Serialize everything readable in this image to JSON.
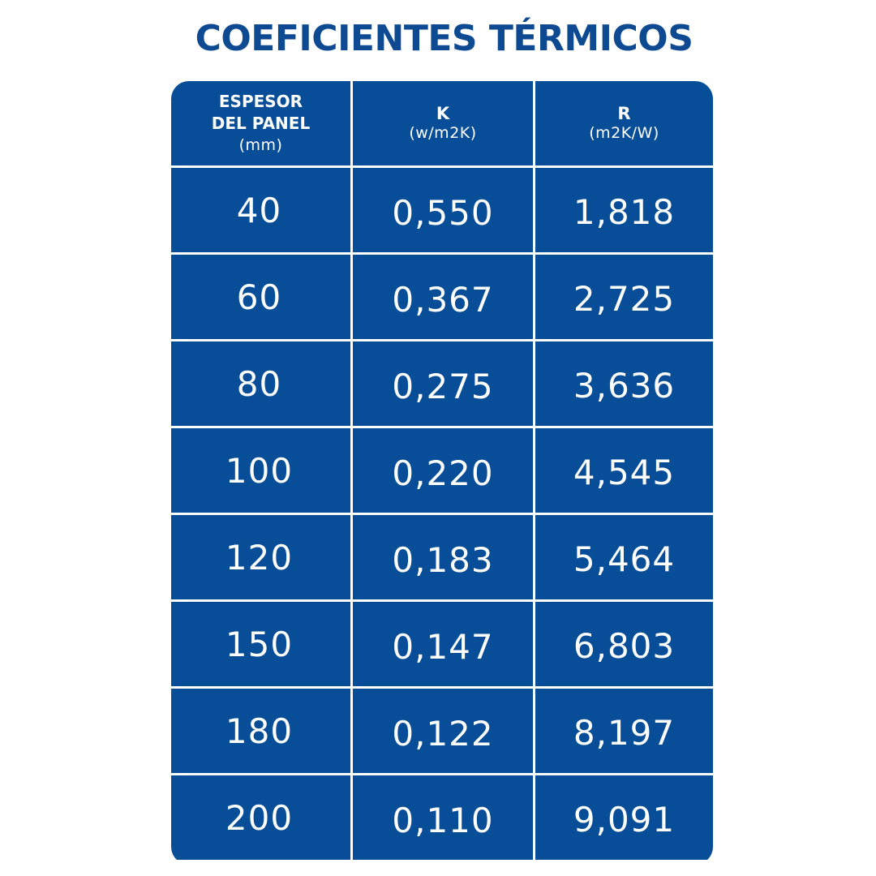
{
  "title": "COEFICIENTES TÉRMICOS",
  "table": {
    "headers": [
      {
        "line1": "ESPESOR",
        "line2": "DEL PANEL",
        "unit": "(mm)"
      },
      {
        "label": "K",
        "unit": "(w/m2K)"
      },
      {
        "label": "R",
        "unit": "(m2K/W)"
      }
    ],
    "rows": [
      {
        "espesor": "40",
        "k": "0,550",
        "r": "1,818"
      },
      {
        "espesor": "60",
        "k": "0,367",
        "r": "2,725"
      },
      {
        "espesor": "80",
        "k": "0,275",
        "r": "3,636"
      },
      {
        "espesor": "100",
        "k": "0,220",
        "r": "4,545"
      },
      {
        "espesor": "120",
        "k": "0,183",
        "r": "5,464"
      },
      {
        "espesor": "150",
        "k": "0,147",
        "r": "6,803"
      },
      {
        "espesor": "180",
        "k": "0,122",
        "r": "8,197"
      },
      {
        "espesor": "200",
        "k": "0,110",
        "r": "9,091"
      }
    ]
  },
  "colors": {
    "title": "#0d4a92",
    "cell_background": "#074d97",
    "cell_text": "#ffffff",
    "grid_lines": "#ffffff"
  }
}
